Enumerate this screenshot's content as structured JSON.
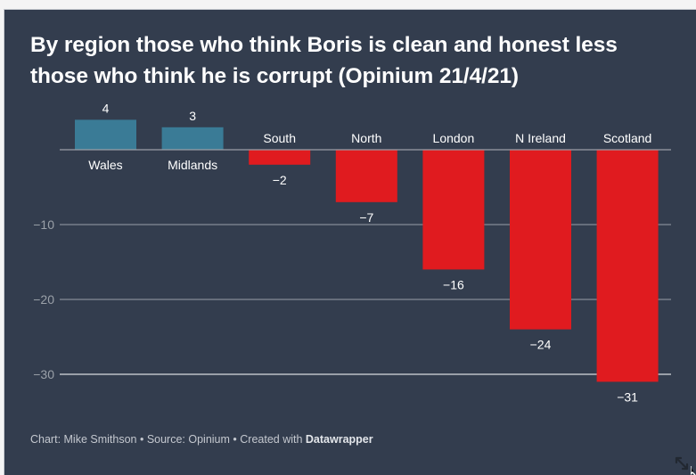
{
  "chart_data": {
    "type": "bar",
    "title": "By region those who think Boris is clean and honest less those who think he is corrupt (Opinium 21/4/21)",
    "categories": [
      "Wales",
      "Midlands",
      "South",
      "North",
      "London",
      "N Ireland",
      "Scotland"
    ],
    "values": [
      4,
      3,
      -2,
      -7,
      -16,
      -24,
      -31
    ],
    "value_labels": [
      "4",
      "3",
      "−2",
      "−7",
      "−16",
      "−24",
      "−31"
    ],
    "xlabel": "",
    "ylabel": "",
    "ylim": [
      -31,
      4
    ],
    "yticks": [
      -10,
      -20,
      -30
    ],
    "ytick_labels": [
      "−10",
      "−20",
      "−30"
    ],
    "grid": true,
    "legend": "none",
    "colors": {
      "positive": "#3a7b96",
      "negative": "#e01b1f",
      "background": "#333d4e",
      "gridline": "#9aa0a8",
      "text": "#ffffff",
      "axis_label": "#9aa0a8"
    }
  },
  "footer": {
    "chart_credit": "Chart: Mike Smithson",
    "separator": " • ",
    "source": "Source: Opinium",
    "created_with_prefix": "Created with ",
    "created_with_brand": "Datawrapper"
  },
  "icons": {
    "resize": "resize-diagonal-icon",
    "cursor": "cursor-icon"
  }
}
